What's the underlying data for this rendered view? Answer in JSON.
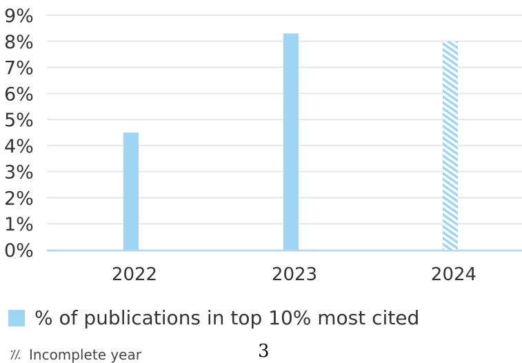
{
  "chart_data": {
    "type": "bar",
    "categories": [
      "2022",
      "2023",
      "2024"
    ],
    "values": [
      4.5,
      8.3,
      8.0
    ],
    "incomplete": [
      false,
      false,
      true
    ],
    "ylim": [
      0,
      9
    ],
    "yticks": [
      0,
      1,
      2,
      3,
      4,
      5,
      6,
      7,
      8,
      9
    ],
    "ytick_suffix": "%",
    "grid": true,
    "legend_placement": "bottom-left",
    "series": [
      {
        "name": "% of publications in top 10% most cited",
        "values": [
          4.5,
          8.3,
          8.0
        ]
      }
    ],
    "incomplete_label": "Incomplete year"
  },
  "colors": {
    "bar": "#9dd5f3",
    "grid": "#e6e6e6",
    "baseline": "#b9d7e8",
    "tick_text": "#333333"
  },
  "page_number": "3"
}
